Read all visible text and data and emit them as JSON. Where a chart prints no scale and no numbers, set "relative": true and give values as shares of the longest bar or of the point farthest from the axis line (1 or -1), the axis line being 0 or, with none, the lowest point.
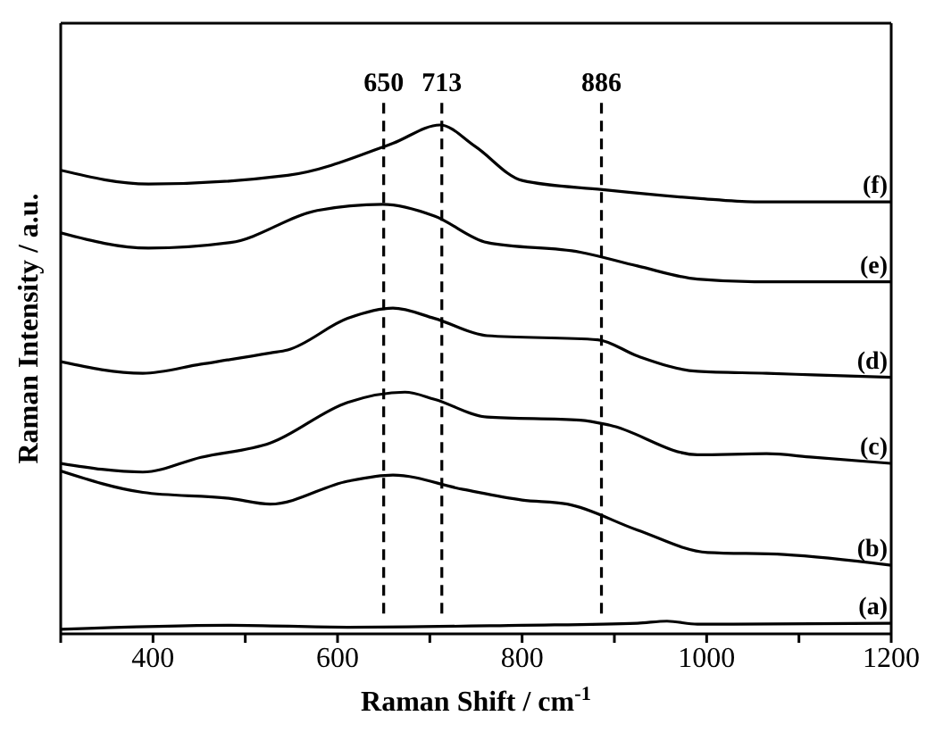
{
  "chart_data": {
    "type": "line",
    "relative": true,
    "xlabel": "Raman Shift / cm$^{-1}$",
    "ylabel": "Raman Intensity / a.u.",
    "xlim": [
      300,
      1200
    ],
    "xticks": [
      {
        "value": 300,
        "label": null
      },
      400,
      {
        "value": 500,
        "label": null
      },
      600,
      {
        "value": 700,
        "label": null
      },
      800,
      {
        "value": 900,
        "label": null
      },
      1000,
      {
        "value": 1100,
        "label": null
      },
      1200
    ],
    "legend": false,
    "grid": false,
    "marker": "none",
    "ref_lines": [
      {
        "axis": "x",
        "value": 650,
        "label": "650",
        "line_style": "dashed",
        "color": "#000000"
      },
      {
        "axis": "x",
        "value": 713,
        "label": "713",
        "line_style": "dashed",
        "color": "#000000"
      },
      {
        "axis": "x",
        "value": 886,
        "label": "886",
        "line_style": "dashed",
        "color": "#000000"
      }
    ],
    "series": [
      {
        "name": "(a)",
        "color": "#000000",
        "x": [
          300,
          484,
          611,
          800,
          925,
          957,
          990,
          1200
        ],
        "values": [
          0.009,
          0.017,
          0.013,
          0.017,
          0.021,
          0.025,
          0.019,
          0.021
        ]
      },
      {
        "name": "(b)",
        "color": "#000000",
        "x": [
          300,
          389,
          484,
          527,
          611,
          660,
          736,
          800,
          849,
          925,
          1001,
          1084,
          1200
        ],
        "values": [
          0.32,
          0.278,
          0.266,
          0.255,
          0.3,
          0.312,
          0.284,
          0.263,
          0.255,
          0.204,
          0.16,
          0.156,
          0.135
        ]
      },
      {
        "name": "(c)",
        "color": "#000000",
        "x": [
          300,
          389,
          452,
          527,
          611,
          673,
          705,
          762,
          863,
          895,
          990,
          1065,
          1115,
          1200
        ],
        "values": [
          0.335,
          0.318,
          0.347,
          0.375,
          0.455,
          0.475,
          0.461,
          0.426,
          0.42,
          0.41,
          0.352,
          0.354,
          0.347,
          0.335
        ]
      },
      {
        "name": "(d)",
        "color": "#000000",
        "x": [
          300,
          389,
          452,
          527,
          546,
          611,
          660,
          705,
          762,
          882,
          925,
          990,
          1065,
          1115,
          1200
        ],
        "values": [
          0.535,
          0.512,
          0.53,
          0.552,
          0.558,
          0.62,
          0.64,
          0.62,
          0.586,
          0.578,
          0.546,
          0.516,
          0.512,
          0.509,
          0.504
        ]
      },
      {
        "name": "(e)",
        "color": "#000000",
        "x": [
          300,
          395,
          484,
          578,
          649,
          705,
          762,
          863,
          925,
          990,
          1052,
          1200
        ],
        "values": [
          0.788,
          0.758,
          0.769,
          0.832,
          0.844,
          0.821,
          0.769,
          0.75,
          0.723,
          0.697,
          0.692,
          0.692
        ]
      },
      {
        "name": "(f)",
        "color": "#000000",
        "x": [
          300,
          395,
          546,
          660,
          711,
          749,
          800,
          887,
          990,
          1052,
          1200
        ],
        "values": [
          0.911,
          0.884,
          0.901,
          0.964,
          1,
          0.958,
          0.891,
          0.873,
          0.856,
          0.849,
          0.849
        ]
      }
    ]
  }
}
